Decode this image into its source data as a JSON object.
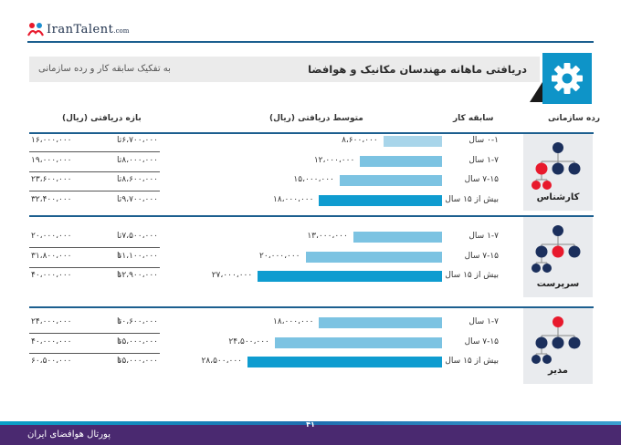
{
  "brand": {
    "name": "IranTalent",
    "suffix": ".com"
  },
  "title": {
    "main": "دریافتی ماهانه مهندسان مکانیک و هوافضا",
    "sub": "به تفکیک سابقه کار و رده سازمانی"
  },
  "columns": {
    "level": "رده سازمانی",
    "experience": "سابقه کار",
    "average": "متوسط دریافتی (ریال)",
    "range": "بازه دریافتی (ریال)"
  },
  "range_to": "تا",
  "footer": {
    "portal": "پورتال هوافضای ایران",
    "page": "۴۱"
  },
  "icons": {
    "header": "gear-icon",
    "level": "org-chart-icon"
  },
  "colors": {
    "light_bar": "#a8d5ea",
    "mid_bar": "#7cc3e2",
    "dark_bar": "#0f9cd0",
    "accent": "#1c5f8f",
    "node_red": "#e8192c",
    "node_navy": "#1b2f5c",
    "footer": "#4a2970"
  },
  "chart_data": {
    "type": "bar",
    "orientation": "horizontal",
    "value_unit": "ریال",
    "groups": [
      {
        "level": "کارشناس",
        "highlight": "bottom",
        "rows": [
          {
            "experience": "۰-۱ سال",
            "average": 8600000,
            "average_text": "۸،۶۰۰،۰۰۰",
            "min_text": "۶،۷۰۰،۰۰۰",
            "max_text": "۱۶،۰۰۰،۰۰۰"
          },
          {
            "experience": "۱-۷ سال",
            "average": 12000000,
            "average_text": "۱۲،۰۰۰،۰۰۰",
            "min_text": "۸،۰۰۰،۰۰۰",
            "max_text": "۱۹،۰۰۰،۰۰۰"
          },
          {
            "experience": "۷-۱۵ سال",
            "average": 15000000,
            "average_text": "۱۵،۰۰۰،۰۰۰",
            "min_text": "۸،۶۰۰،۰۰۰",
            "max_text": "۲۳،۶۰۰،۰۰۰"
          },
          {
            "experience": "بیش از ۱۵ سال",
            "average": 18000000,
            "average_text": "۱۸،۰۰۰،۰۰۰",
            "min_text": "۹،۷۰۰،۰۰۰",
            "max_text": "۳۲،۴۰۰،۰۰۰"
          }
        ]
      },
      {
        "level": "سرپرست",
        "highlight": "middle",
        "rows": [
          {
            "experience": "۱-۷ سال",
            "average": 13000000,
            "average_text": "۱۳،۰۰۰،۰۰۰",
            "min_text": "۷،۵۰۰،۰۰۰",
            "max_text": "۲۰،۰۰۰،۰۰۰"
          },
          {
            "experience": "۷-۱۵ سال",
            "average": 20000000,
            "average_text": "۲۰،۰۰۰،۰۰۰",
            "min_text": "۱۱،۱۰۰،۰۰۰",
            "max_text": "۳۱،۸۰۰،۰۰۰"
          },
          {
            "experience": "بیش از ۱۵ سال",
            "average": 27000000,
            "average_text": "۲۷،۰۰۰،۰۰۰",
            "min_text": "۱۲،۹۰۰،۰۰۰",
            "max_text": "۴۰،۰۰۰،۰۰۰"
          }
        ]
      },
      {
        "level": "مدیر",
        "highlight": "top",
        "rows": [
          {
            "experience": "۱-۷ سال",
            "average": 18000000,
            "average_text": "۱۸،۰۰۰،۰۰۰",
            "min_text": "۱۰،۶۰۰،۰۰۰",
            "max_text": "۲۴،۰۰۰،۰۰۰"
          },
          {
            "experience": "۷-۱۵ سال",
            "average": 24500000,
            "average_text": "۲۴،۵۰۰،۰۰۰",
            "min_text": "۱۵،۰۰۰،۰۰۰",
            "max_text": "۴۰،۰۰۰،۰۰۰"
          },
          {
            "experience": "بیش از ۱۵ سال",
            "average": 28500000,
            "average_text": "۲۸،۵۰۰،۰۰۰",
            "min_text": "۱۵،۰۰۰،۰۰۰",
            "max_text": "۶۰،۵۰۰،۰۰۰"
          }
        ]
      }
    ]
  }
}
